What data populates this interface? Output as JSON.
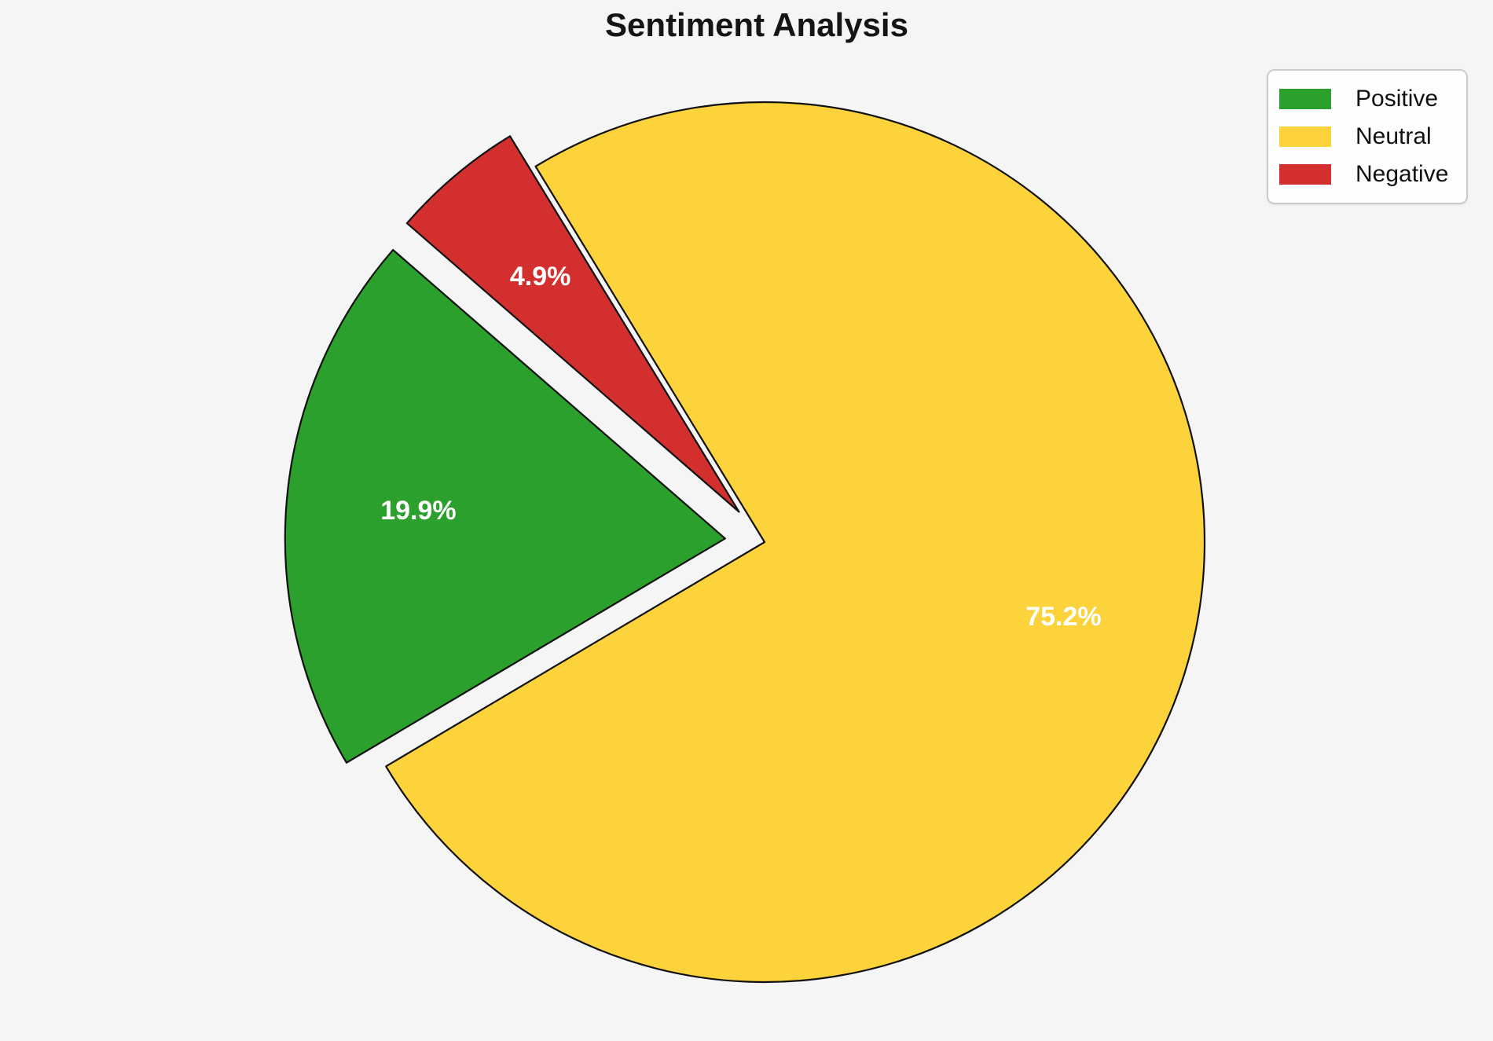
{
  "chart_data": {
    "type": "pie",
    "title": "Sentiment Analysis",
    "slices": [
      {
        "label": "Positive",
        "value": 19.9,
        "pct_label": "19.9%",
        "color": "#2ca02c",
        "explode": 0.09
      },
      {
        "label": "Neutral",
        "value": 75.2,
        "pct_label": "75.2%",
        "color": "#fdd33b",
        "explode": 0
      },
      {
        "label": "Negative",
        "value": 4.9,
        "pct_label": "4.9%",
        "color": "#d32f2f",
        "explode": 0.09
      }
    ],
    "legend": {
      "position": "upper right",
      "entries": [
        "Positive",
        "Neutral",
        "Negative"
      ]
    },
    "layout": {
      "start_angle": 139,
      "counterclock": true,
      "pct_distance": 0.7,
      "edge_color": "#111111",
      "edge_width": 2.2,
      "label_color": "#ffffff",
      "background": "#f5f5f5"
    }
  }
}
